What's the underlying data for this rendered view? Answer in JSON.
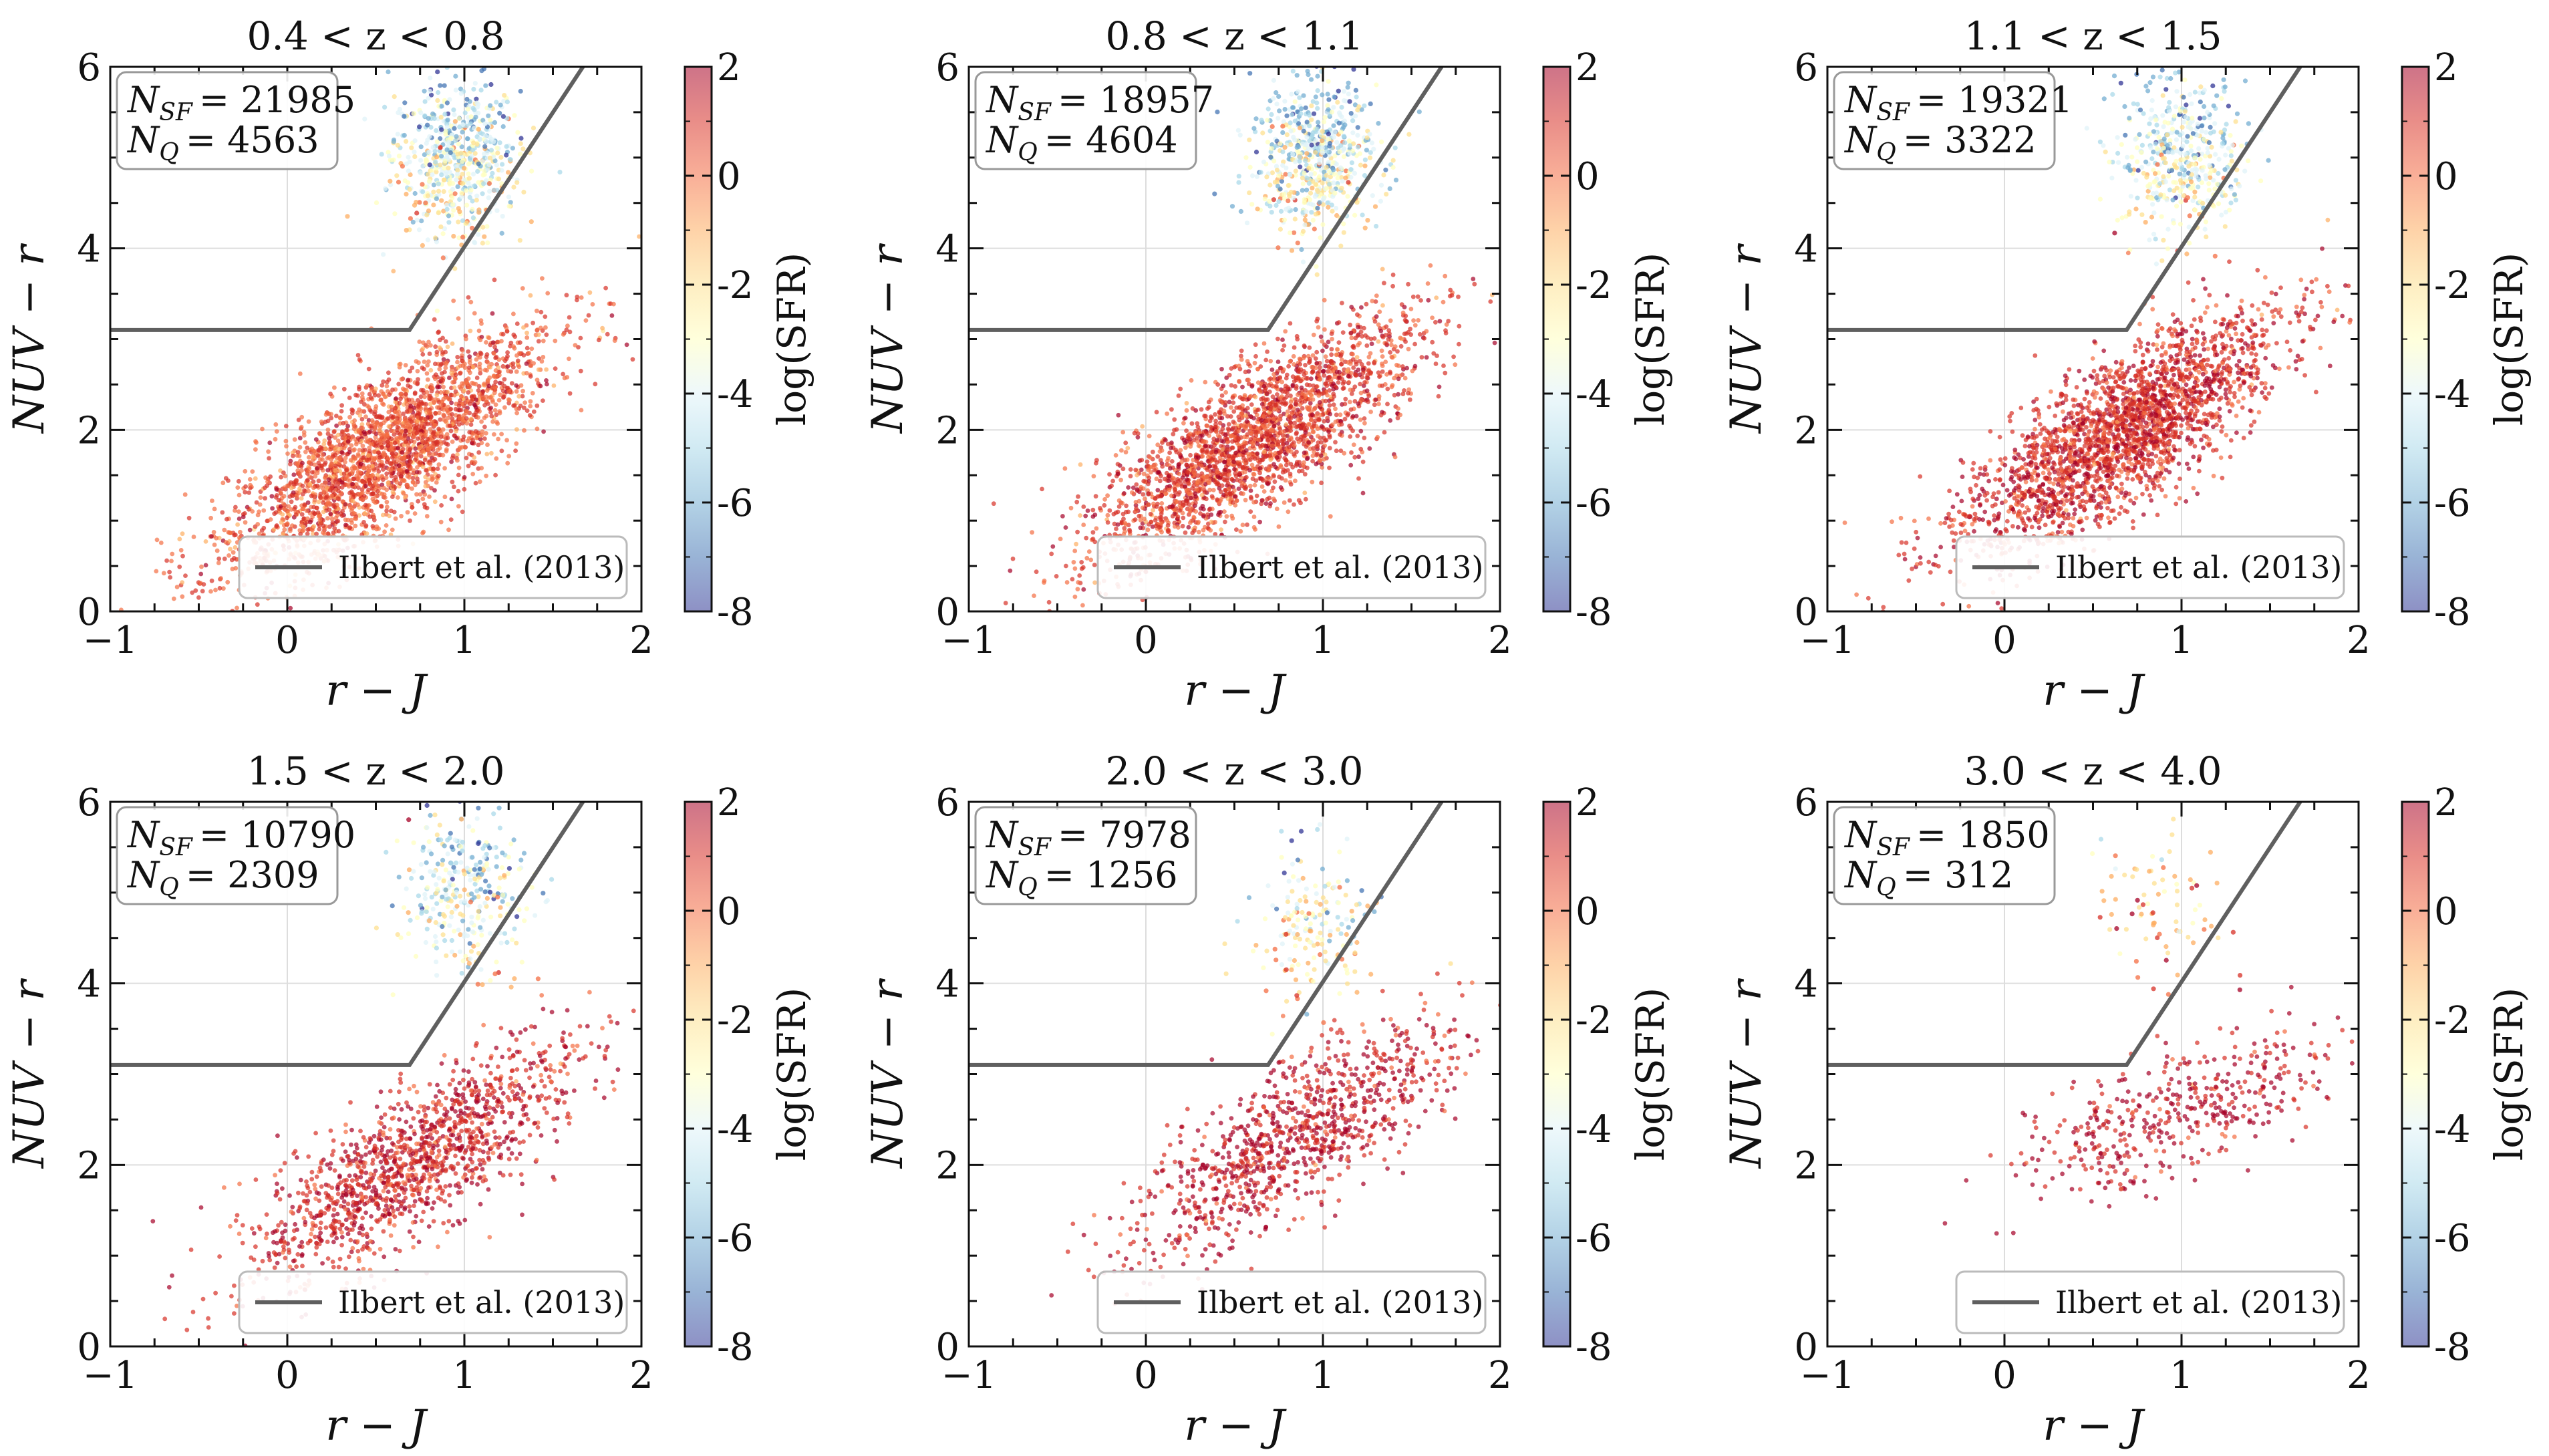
{
  "figure": {
    "ylabel": "NUV − r",
    "xlabel": "r − J",
    "colorbar_label": "log(SFR)",
    "legend_label": "Ilbert et al. (2013)"
  },
  "chart_data": [
    {
      "type": "scatter",
      "title": "0.4 < z < 0.8",
      "n_sf_label": "N",
      "n_sf_sub": "SF",
      "n_sf_value": "= 21985",
      "n_q_label": "N",
      "n_q_sub": "Q",
      "n_q_value": "= 4563",
      "xlim": [
        -1,
        2
      ],
      "ylim": [
        0,
        6
      ],
      "xticks": [
        -1,
        0,
        1,
        2
      ],
      "yticks": [
        0,
        2,
        4,
        6
      ],
      "xtick_labels": [
        "−1",
        "0",
        "1",
        "2"
      ],
      "ytick_labels": [
        "0",
        "2",
        "4",
        "6"
      ],
      "colorbar": {
        "range": [
          -8,
          2
        ],
        "ticks": [
          "2",
          "0",
          "-2",
          "-4",
          "-6",
          "-8"
        ]
      },
      "ilbert_line": [
        [
          -1,
          3.1
        ],
        [
          0.69,
          3.1
        ],
        [
          1.67,
          6.0
        ]
      ],
      "sf_population": {
        "count": 21985,
        "center": [
          0.55,
          1.75
        ],
        "spread_color": 0.45,
        "slope": 1.55,
        "sfr_mean": 0.4
      },
      "q_population": {
        "count": 4563,
        "center": [
          0.95,
          5.0
        ],
        "sfr_mean": -4.0
      }
    },
    {
      "type": "scatter",
      "title": "0.8 < z < 1.1",
      "n_sf_label": "N",
      "n_sf_sub": "SF",
      "n_sf_value": "= 18957",
      "n_q_label": "N",
      "n_q_sub": "Q",
      "n_q_value": "= 4604",
      "xlim": [
        -1,
        2
      ],
      "ylim": [
        0,
        6
      ],
      "xticks": [
        -1,
        0,
        1,
        2
      ],
      "yticks": [
        0,
        2,
        4,
        6
      ],
      "xtick_labels": [
        "−1",
        "0",
        "1",
        "2"
      ],
      "ytick_labels": [
        "0",
        "2",
        "4",
        "6"
      ],
      "colorbar": {
        "range": [
          -8,
          2
        ],
        "ticks": [
          "2",
          "0",
          "-2",
          "-4",
          "-6",
          "-8"
        ]
      },
      "ilbert_line": [
        [
          -1,
          3.1
        ],
        [
          0.69,
          3.1
        ],
        [
          1.67,
          6.0
        ]
      ],
      "sf_population": {
        "count": 18957,
        "center": [
          0.6,
          1.85
        ],
        "spread_color": 0.45,
        "slope": 1.55,
        "sfr_mean": 0.8
      },
      "q_population": {
        "count": 4604,
        "center": [
          0.95,
          5.0
        ],
        "sfr_mean": -4.0
      }
    },
    {
      "type": "scatter",
      "title": "1.1 < z < 1.5",
      "n_sf_label": "N",
      "n_sf_sub": "SF",
      "n_sf_value": "= 19321",
      "n_q_label": "N",
      "n_q_sub": "Q",
      "n_q_value": "= 3322",
      "xlim": [
        -1,
        2
      ],
      "ylim": [
        0,
        6
      ],
      "xticks": [
        -1,
        0,
        1,
        2
      ],
      "yticks": [
        0,
        2,
        4,
        6
      ],
      "xtick_labels": [
        "−1",
        "0",
        "1",
        "2"
      ],
      "ytick_labels": [
        "0",
        "2",
        "4",
        "6"
      ],
      "colorbar": {
        "range": [
          -8,
          2
        ],
        "ticks": [
          "2",
          "0",
          "-2",
          "-4",
          "-6",
          "-8"
        ]
      },
      "ilbert_line": [
        [
          -1,
          3.1
        ],
        [
          0.69,
          3.1
        ],
        [
          1.67,
          6.0
        ]
      ],
      "sf_population": {
        "count": 19321,
        "center": [
          0.65,
          1.95
        ],
        "spread_color": 0.45,
        "slope": 1.55,
        "sfr_mean": 1.1
      },
      "q_population": {
        "count": 3322,
        "center": [
          1.0,
          5.0
        ],
        "sfr_mean": -4.0
      }
    },
    {
      "type": "scatter",
      "title": "1.5 < z < 2.0",
      "n_sf_label": "N",
      "n_sf_sub": "SF",
      "n_sf_value": "= 10790",
      "n_q_label": "N",
      "n_q_sub": "Q",
      "n_q_value": "= 2309",
      "xlim": [
        -1,
        2
      ],
      "ylim": [
        0,
        6
      ],
      "xticks": [
        -1,
        0,
        1,
        2
      ],
      "yticks": [
        0,
        2,
        4,
        6
      ],
      "xtick_labels": [
        "−1",
        "0",
        "1",
        "2"
      ],
      "ytick_labels": [
        "0",
        "2",
        "4",
        "6"
      ],
      "colorbar": {
        "range": [
          -8,
          2
        ],
        "ticks": [
          "2",
          "0",
          "-2",
          "-4",
          "-6",
          "-8"
        ]
      },
      "ilbert_line": [
        [
          -1,
          3.1
        ],
        [
          0.69,
          3.1
        ],
        [
          1.67,
          6.0
        ]
      ],
      "sf_population": {
        "count": 10790,
        "center": [
          0.7,
          2.0
        ],
        "spread_color": 0.5,
        "slope": 1.5,
        "sfr_mean": 1.3
      },
      "q_population": {
        "count": 2309,
        "center": [
          1.0,
          5.0
        ],
        "sfr_mean": -4.0
      }
    },
    {
      "type": "scatter",
      "title": "2.0 < z < 3.0",
      "n_sf_label": "N",
      "n_sf_sub": "SF",
      "n_sf_value": "= 7978",
      "n_q_label": "N",
      "n_q_sub": "Q",
      "n_q_value": "= 1256",
      "xlim": [
        -1,
        2
      ],
      "ylim": [
        0,
        6
      ],
      "xticks": [
        -1,
        0,
        1,
        2
      ],
      "yticks": [
        0,
        2,
        4,
        6
      ],
      "xtick_labels": [
        "−1",
        "0",
        "1",
        "2"
      ],
      "ytick_labels": [
        "0",
        "2",
        "4",
        "6"
      ],
      "colorbar": {
        "range": [
          -8,
          2
        ],
        "ticks": [
          "2",
          "0",
          "-2",
          "-4",
          "-6",
          "-8"
        ]
      },
      "ilbert_line": [
        [
          -1,
          3.1
        ],
        [
          0.69,
          3.1
        ],
        [
          1.67,
          6.0
        ]
      ],
      "sf_population": {
        "count": 7978,
        "center": [
          0.85,
          2.3
        ],
        "spread_color": 0.5,
        "slope": 1.5,
        "sfr_mean": 1.5
      },
      "q_population": {
        "count": 1256,
        "center": [
          0.95,
          4.6
        ],
        "sfr_mean": -3.0
      }
    },
    {
      "type": "scatter",
      "title": "3.0 < z < 4.0",
      "n_sf_label": "N",
      "n_sf_sub": "SF",
      "n_sf_value": "= 1850",
      "n_q_label": "N",
      "n_q_sub": "Q",
      "n_q_value": "= 312",
      "xlim": [
        -1,
        2
      ],
      "ylim": [
        0,
        6
      ],
      "xticks": [
        -1,
        0,
        1,
        2
      ],
      "yticks": [
        0,
        2,
        4,
        6
      ],
      "xtick_labels": [
        "−1",
        "0",
        "1",
        "2"
      ],
      "ytick_labels": [
        "0",
        "2",
        "4",
        "6"
      ],
      "colorbar": {
        "range": [
          -8,
          2
        ],
        "ticks": [
          "2",
          "0",
          "-2",
          "-4",
          "-6",
          "-8"
        ]
      },
      "ilbert_line": [
        [
          -1,
          3.1
        ],
        [
          0.69,
          3.1
        ],
        [
          1.67,
          6.0
        ]
      ],
      "sf_population": {
        "count": 1850,
        "center": [
          1.0,
          2.6
        ],
        "spread_color": 0.5,
        "slope": 1.0,
        "sfr_mean": 1.6
      },
      "q_population": {
        "count": 312,
        "center": [
          0.9,
          4.8
        ],
        "sfr_mean": -1.0
      }
    }
  ],
  "colors": {
    "line": "#5f5f5f",
    "grid": "#dddddd",
    "colormap": [
      "#313695",
      "#4575b4",
      "#74add1",
      "#abd9e9",
      "#e0f3f8",
      "#ffffbf",
      "#fee090",
      "#fdae61",
      "#f46d43",
      "#d73027",
      "#a50026"
    ]
  }
}
